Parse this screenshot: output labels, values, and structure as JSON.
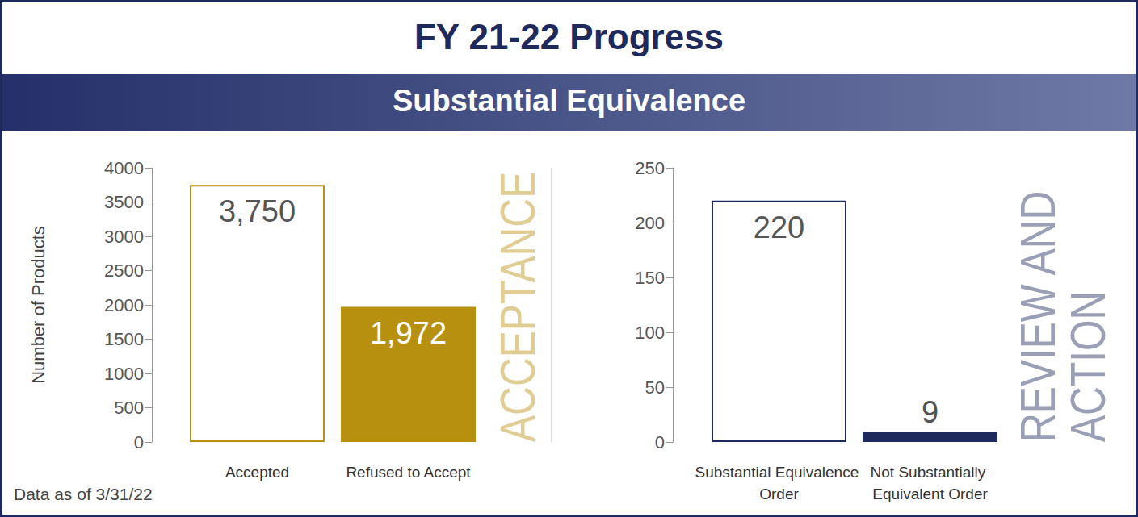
{
  "header": {
    "title": "FY 21-22 Progress",
    "subtitle": "Substantial Equivalence"
  },
  "note": "Data as of 3/31/22",
  "chart_data": [
    {
      "type": "bar",
      "categories": [
        "Accepted",
        "Refused to Accept"
      ],
      "values": [
        3750,
        1972
      ],
      "value_labels": [
        "3,750",
        "1,972"
      ],
      "color": "#b8900f",
      "ylabel": "Number of Products",
      "annotation": "ACCEPTANCE",
      "ylim": [
        0,
        4000
      ],
      "yticks": [
        0,
        500,
        1000,
        1500,
        2000,
        2500,
        3000,
        3500,
        4000
      ],
      "grid": false,
      "data_labels": true
    },
    {
      "type": "bar",
      "categories": [
        "Substantial Equivalence Order",
        "Not Substantially Equivalent Order"
      ],
      "values": [
        220,
        9
      ],
      "color": "#1f2a5c",
      "annotation": "REVIEW AND ACTION",
      "ylim": [
        0,
        250
      ],
      "yticks": [
        0,
        50,
        100,
        150,
        200,
        250
      ],
      "grid": false,
      "data_labels": true
    }
  ]
}
